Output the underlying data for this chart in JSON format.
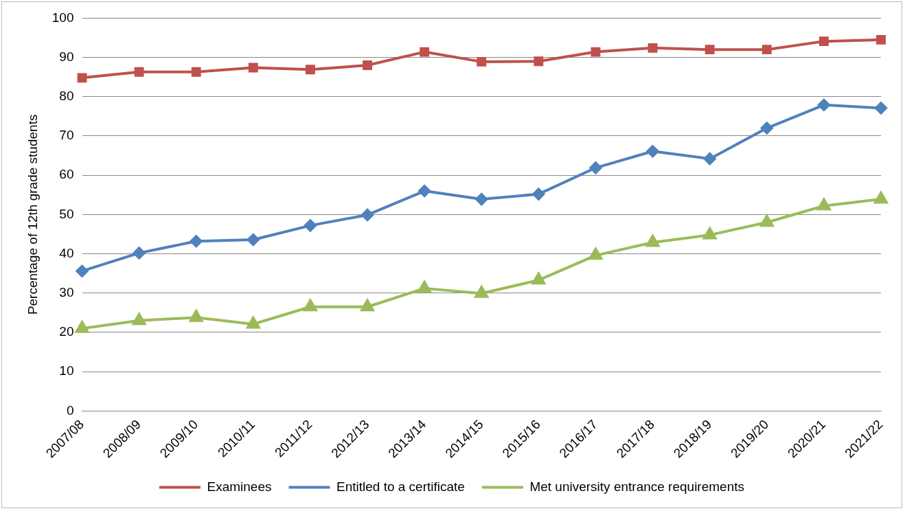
{
  "chart_data": {
    "type": "line",
    "ylabel": "Percentage of 12th grade students",
    "categories": [
      "2007/08",
      "2008/09",
      "2009/10",
      "2010/11",
      "2011/12",
      "2012/13",
      "2013/14",
      "2014/15",
      "2015/16",
      "2016/17",
      "2017/18",
      "2018/19",
      "2019/20",
      "2020/21",
      "2021/22"
    ],
    "series": [
      {
        "name": "Examinees",
        "color": "#c0504d",
        "marker": "square",
        "values": [
          84.8,
          86.3,
          86.3,
          87.4,
          86.9,
          88,
          91.4,
          88.9,
          89,
          91.4,
          92.4,
          92,
          92,
          94.1,
          94.5
        ]
      },
      {
        "name": "Entitled to a certificate",
        "color": "#4f81bd",
        "marker": "diamond",
        "values": [
          35.6,
          40.2,
          43.2,
          43.6,
          47.2,
          49.9,
          56,
          53.9,
          55.2,
          61.9,
          66.1,
          64.2,
          72,
          77.9,
          77.1
        ]
      },
      {
        "name": "Met university entrance requirements",
        "color": "#9bbb59",
        "marker": "triangle",
        "values": [
          21,
          23,
          23.8,
          22.1,
          26.5,
          26.5,
          31.2,
          29.9,
          33.3,
          39.6,
          42.9,
          44.8,
          48,
          52.2,
          53.9
        ]
      }
    ],
    "ylim": [
      0,
      100
    ],
    "yticks": [
      0,
      10,
      20,
      30,
      40,
      50,
      60,
      70,
      80,
      90,
      100
    ],
    "grid": "y",
    "legend": "bottom",
    "line_style": "solid"
  }
}
